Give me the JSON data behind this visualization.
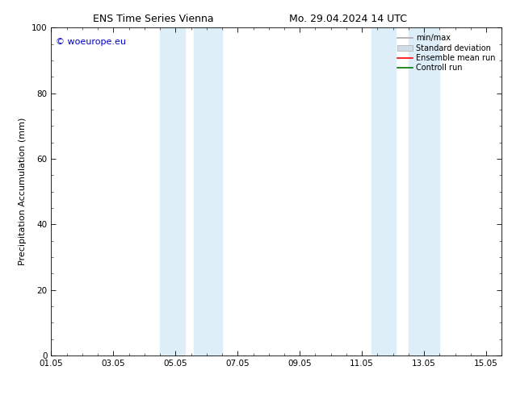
{
  "title_left": "ENS Time Series Vienna",
  "title_right": "Mo. 29.04.2024 14 UTC",
  "ylabel": "Precipitation Accumulation (mm)",
  "ylim": [
    0,
    100
  ],
  "yticks": [
    0,
    20,
    40,
    60,
    80,
    100
  ],
  "xtick_labels": [
    "01.05",
    "03.05",
    "05.05",
    "07.05",
    "09.05",
    "11.05",
    "13.05",
    "15.05"
  ],
  "xtick_positions": [
    0,
    2,
    4,
    6,
    8,
    10,
    12,
    14
  ],
  "xlim": [
    0,
    14
  ],
  "shaded_bands": [
    {
      "x_start": 3.5,
      "x_end": 4.3
    },
    {
      "x_start": 4.6,
      "x_end": 5.5
    },
    {
      "x_start": 10.3,
      "x_end": 11.1
    },
    {
      "x_start": 11.5,
      "x_end": 12.5
    }
  ],
  "shade_color": "#ddeef8",
  "watermark_text": "© woeurope.eu",
  "watermark_color": "#0000cc",
  "legend_items": [
    {
      "label": "min/max",
      "color": "#aaaaaa",
      "type": "line"
    },
    {
      "label": "Standard deviation",
      "color": "#d0dde8",
      "type": "fill"
    },
    {
      "label": "Ensemble mean run",
      "color": "#ff0000",
      "type": "line"
    },
    {
      "label": "Controll run",
      "color": "#007700",
      "type": "line"
    }
  ],
  "bg_color": "#ffffff",
  "title_fontsize": 9,
  "label_fontsize": 8,
  "tick_fontsize": 7.5,
  "legend_fontsize": 7,
  "watermark_fontsize": 8
}
